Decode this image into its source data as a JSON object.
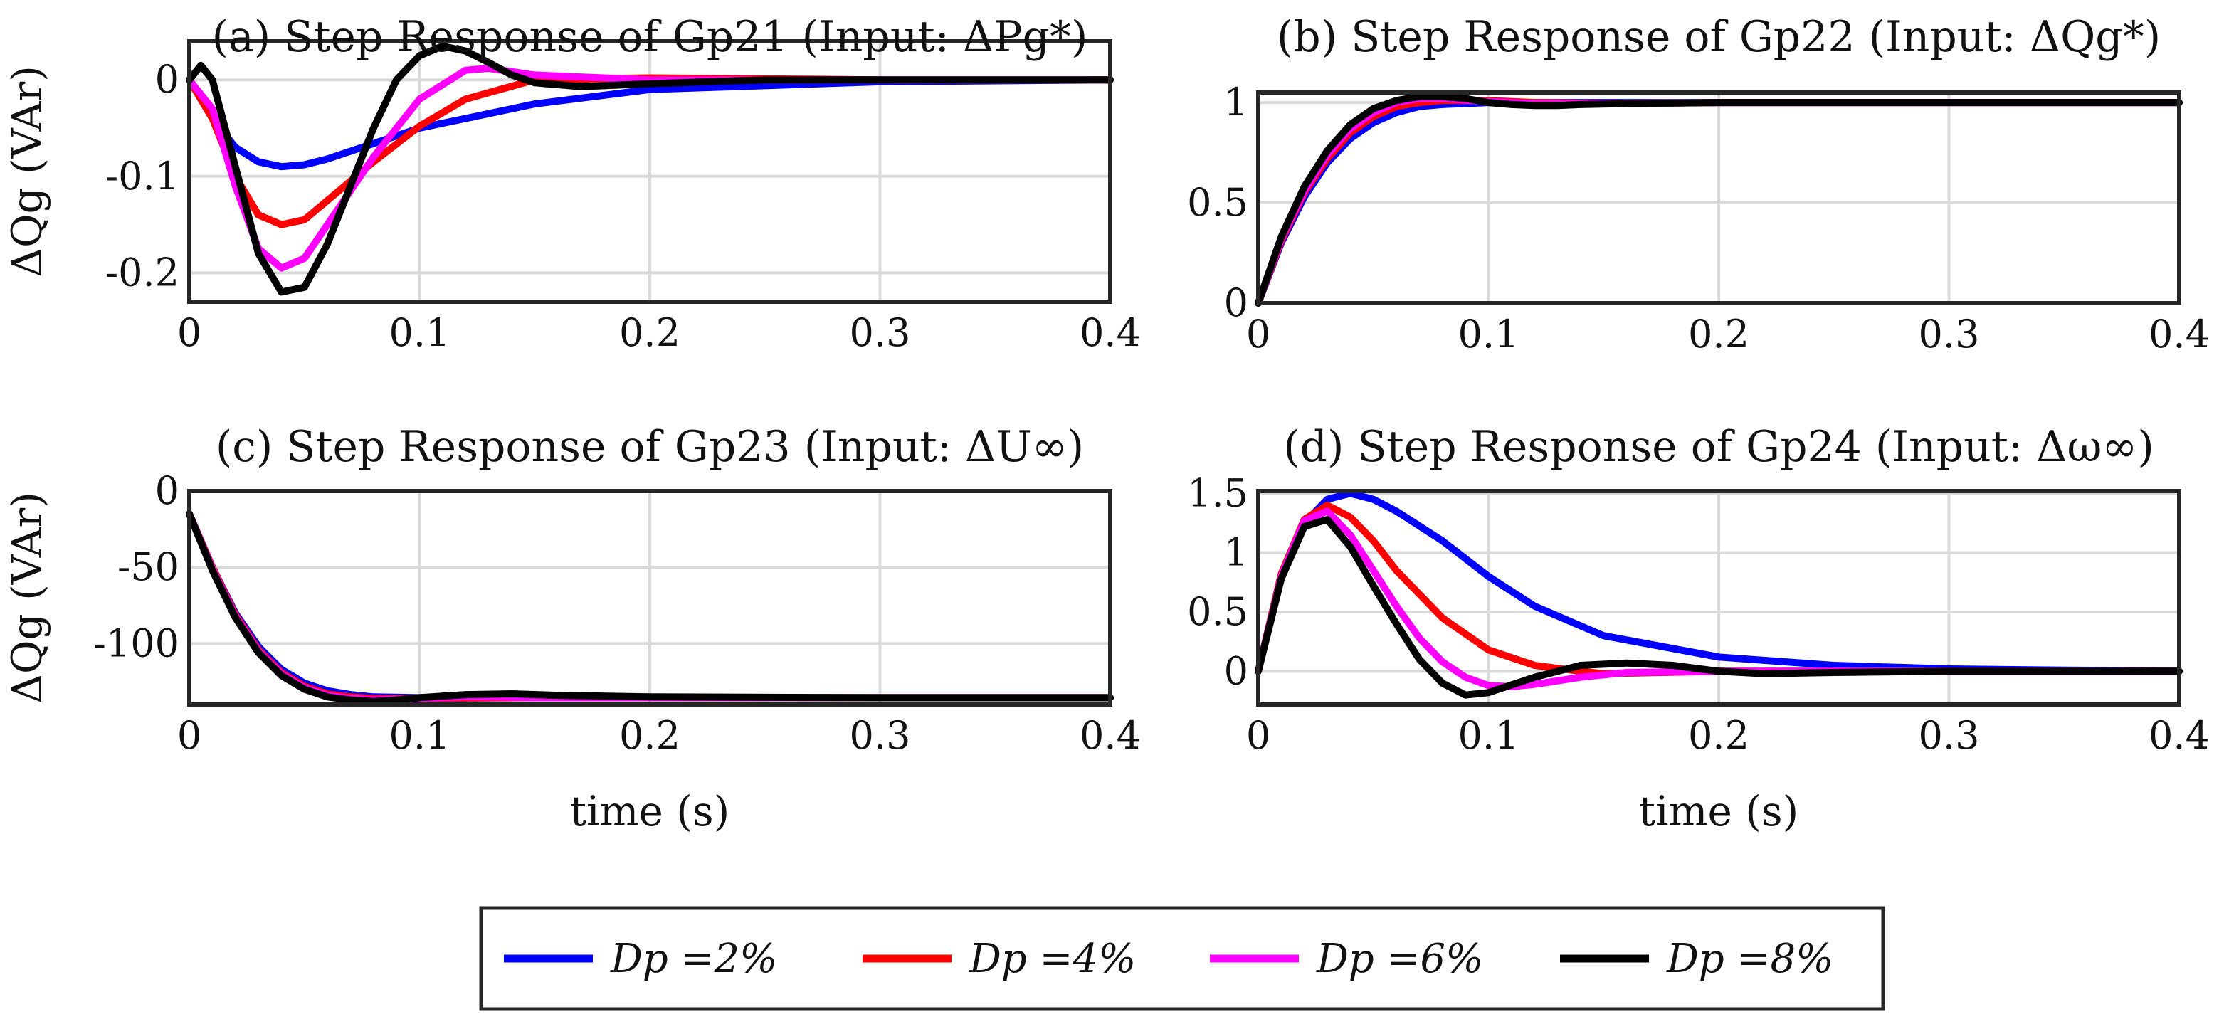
{
  "figure": {
    "series_colors": {
      "2": "#0000ff",
      "4": "#ff0000",
      "6": "#ff00ff",
      "8": "#000000"
    }
  },
  "legend": {
    "entries": [
      {
        "label": "Dp =2%",
        "color": "#0000ff"
      },
      {
        "label": "Dp =4%",
        "color": "#ff0000"
      },
      {
        "label": "Dp =6%",
        "color": "#ff00ff"
      },
      {
        "label": "Dp =8%",
        "color": "#000000"
      }
    ]
  },
  "chart_data": [
    {
      "type": "line",
      "panel": "(a)",
      "title": "(a) Step Response of Gp21 (Input: ΔPg*)",
      "xlabel": "",
      "ylabel": "ΔQg (VAr)",
      "xlim": [
        0,
        0.4
      ],
      "ylim": [
        -0.23,
        0.04
      ],
      "xticks": [
        "0",
        "0.1",
        "0.2",
        "0.3",
        "0.4"
      ],
      "yticks": [
        "0",
        "-0.1",
        "-0.2"
      ],
      "ytick_values": [
        0,
        -0.1,
        -0.2
      ],
      "grid": true,
      "series": [
        {
          "name": "Dp =2%",
          "x": [
            0,
            0.01,
            0.02,
            0.03,
            0.04,
            0.05,
            0.06,
            0.08,
            0.1,
            0.15,
            0.2,
            0.3,
            0.4
          ],
          "y": [
            0,
            -0.04,
            -0.07,
            -0.085,
            -0.09,
            -0.088,
            -0.082,
            -0.066,
            -0.05,
            -0.025,
            -0.01,
            -0.002,
            0
          ]
        },
        {
          "name": "Dp =4%",
          "x": [
            0,
            0.01,
            0.02,
            0.03,
            0.04,
            0.05,
            0.06,
            0.08,
            0.1,
            0.12,
            0.15,
            0.2,
            0.3,
            0.4
          ],
          "y": [
            0,
            -0.04,
            -0.1,
            -0.14,
            -0.15,
            -0.145,
            -0.125,
            -0.085,
            -0.048,
            -0.02,
            0,
            0.002,
            0,
            0
          ]
        },
        {
          "name": "Dp =6%",
          "x": [
            0,
            0.01,
            0.02,
            0.03,
            0.04,
            0.05,
            0.06,
            0.08,
            0.1,
            0.12,
            0.13,
            0.15,
            0.2,
            0.3,
            0.4
          ],
          "y": [
            0,
            -0.03,
            -0.11,
            -0.175,
            -0.195,
            -0.185,
            -0.15,
            -0.08,
            -0.02,
            0.01,
            0.012,
            0.005,
            0,
            0,
            0
          ]
        },
        {
          "name": "Dp =8%",
          "x": [
            0,
            0.005,
            0.01,
            0.02,
            0.03,
            0.04,
            0.05,
            0.06,
            0.07,
            0.08,
            0.09,
            0.1,
            0.11,
            0.12,
            0.13,
            0.14,
            0.15,
            0.17,
            0.2,
            0.25,
            0.3,
            0.4
          ],
          "y": [
            0,
            0.015,
            0,
            -0.09,
            -0.18,
            -0.22,
            -0.215,
            -0.17,
            -0.11,
            -0.05,
            0,
            0.025,
            0.035,
            0.03,
            0.018,
            0.005,
            -0.003,
            -0.007,
            -0.004,
            0,
            0,
            0
          ]
        }
      ]
    },
    {
      "type": "line",
      "panel": "(b)",
      "title": "(b) Step Response of Gp22 (Input: ΔQg*)",
      "xlabel": "",
      "ylabel": "",
      "xlim": [
        0,
        0.4
      ],
      "ylim": [
        0,
        1.05
      ],
      "xticks": [
        "0",
        "0.1",
        "0.2",
        "0.3",
        "0.4"
      ],
      "yticks": [
        "0",
        "0.5",
        "1"
      ],
      "ytick_values": [
        0,
        0.5,
        1
      ],
      "grid": true,
      "series": [
        {
          "name": "Dp =2%",
          "x": [
            0,
            0.01,
            0.02,
            0.03,
            0.04,
            0.05,
            0.06,
            0.07,
            0.08,
            0.1,
            0.15,
            0.2,
            0.3,
            0.4
          ],
          "y": [
            0,
            0.3,
            0.53,
            0.7,
            0.82,
            0.9,
            0.95,
            0.98,
            0.99,
            1.0,
            1.0,
            1.0,
            1.0,
            1.0
          ]
        },
        {
          "name": "Dp =4%",
          "x": [
            0,
            0.01,
            0.02,
            0.03,
            0.04,
            0.05,
            0.06,
            0.07,
            0.08,
            0.1,
            0.12,
            0.15,
            0.2,
            0.3,
            0.4
          ],
          "y": [
            0,
            0.31,
            0.55,
            0.72,
            0.85,
            0.93,
            0.98,
            1.0,
            1.01,
            1.01,
            1.0,
            0.995,
            1.0,
            1.0,
            1.0
          ]
        },
        {
          "name": "Dp =6%",
          "x": [
            0,
            0.01,
            0.02,
            0.03,
            0.04,
            0.05,
            0.06,
            0.07,
            0.08,
            0.1,
            0.12,
            0.15,
            0.2,
            0.3,
            0.4
          ],
          "y": [
            0,
            0.32,
            0.56,
            0.74,
            0.87,
            0.95,
            1.0,
            1.02,
            1.02,
            1.005,
            0.995,
            0.995,
            1.0,
            1.0,
            1.0
          ]
        },
        {
          "name": "Dp =8%",
          "x": [
            0,
            0.01,
            0.02,
            0.03,
            0.04,
            0.05,
            0.06,
            0.07,
            0.08,
            0.09,
            0.1,
            0.11,
            0.12,
            0.13,
            0.14,
            0.16,
            0.2,
            0.3,
            0.4
          ],
          "y": [
            0,
            0.33,
            0.58,
            0.76,
            0.89,
            0.97,
            1.01,
            1.03,
            1.03,
            1.02,
            1.0,
            0.99,
            0.985,
            0.985,
            0.99,
            0.995,
            1.0,
            1.0,
            1.0
          ]
        }
      ]
    },
    {
      "type": "line",
      "panel": "(c)",
      "title": "(c) Step Response of Gp23 (Input: ΔU∞)",
      "xlabel": "time (s)",
      "ylabel": "ΔQg (VAr)",
      "xlim": [
        0,
        0.4
      ],
      "ylim": [
        -140,
        0
      ],
      "xticks": [
        "0",
        "0.1",
        "0.2",
        "0.3",
        "0.4"
      ],
      "yticks": [
        "0",
        "-50",
        "-100"
      ],
      "ytick_values": [
        0,
        -50,
        -100
      ],
      "grid": true,
      "series": [
        {
          "name": "Dp =2%",
          "x": [
            0,
            0.01,
            0.02,
            0.03,
            0.04,
            0.05,
            0.06,
            0.07,
            0.08,
            0.1,
            0.15,
            0.2,
            0.3,
            0.4
          ],
          "y": [
            -15,
            -50,
            -80,
            -102,
            -117,
            -126,
            -131,
            -133.5,
            -135,
            -135.5,
            -135.5,
            -135.5,
            -135.5,
            -135.5
          ]
        },
        {
          "name": "Dp =4%",
          "x": [
            0,
            0.01,
            0.02,
            0.03,
            0.04,
            0.05,
            0.06,
            0.07,
            0.08,
            0.1,
            0.15,
            0.2,
            0.3,
            0.4
          ],
          "y": [
            -15,
            -50,
            -81,
            -104,
            -119,
            -128,
            -133,
            -135,
            -136,
            -136,
            -135.5,
            -135.5,
            -135.5,
            -135.5
          ]
        },
        {
          "name": "Dp =6%",
          "x": [
            0,
            0.01,
            0.02,
            0.03,
            0.04,
            0.05,
            0.06,
            0.07,
            0.08,
            0.1,
            0.12,
            0.15,
            0.2,
            0.3,
            0.4
          ],
          "y": [
            -15,
            -51,
            -82,
            -105,
            -120,
            -129,
            -134,
            -136,
            -137,
            -136,
            -135,
            -135.5,
            -135.5,
            -135.5,
            -135.5
          ]
        },
        {
          "name": "Dp =8%",
          "x": [
            0,
            0.01,
            0.02,
            0.03,
            0.04,
            0.05,
            0.06,
            0.07,
            0.08,
            0.09,
            0.1,
            0.12,
            0.14,
            0.16,
            0.2,
            0.3,
            0.4
          ],
          "y": [
            -15,
            -52,
            -83,
            -106,
            -121,
            -130,
            -135,
            -137,
            -138,
            -137,
            -135.5,
            -133.5,
            -133,
            -134,
            -135,
            -135.5,
            -135.5
          ]
        }
      ]
    },
    {
      "type": "line",
      "panel": "(d)",
      "title": "(d) Step Response of Gp24 (Input: Δω∞)",
      "xlabel": "time (s)",
      "ylabel": "",
      "xlim": [
        0,
        0.4
      ],
      "ylim": [
        -0.28,
        1.52
      ],
      "xticks": [
        "0",
        "0.1",
        "0.2",
        "0.3",
        "0.4"
      ],
      "yticks": [
        "0",
        "0.5",
        "1",
        "1.5"
      ],
      "ytick_values": [
        0,
        0.5,
        1,
        1.5
      ],
      "grid": true,
      "series": [
        {
          "name": "Dp =2%",
          "x": [
            0,
            0.01,
            0.02,
            0.03,
            0.04,
            0.05,
            0.06,
            0.08,
            0.1,
            0.12,
            0.15,
            0.2,
            0.25,
            0.3,
            0.35,
            0.4
          ],
          "y": [
            0,
            0.8,
            1.25,
            1.45,
            1.5,
            1.45,
            1.35,
            1.1,
            0.8,
            0.55,
            0.3,
            0.12,
            0.05,
            0.02,
            0.01,
            0
          ]
        },
        {
          "name": "Dp =4%",
          "x": [
            0,
            0.01,
            0.02,
            0.03,
            0.04,
            0.05,
            0.06,
            0.08,
            0.1,
            0.12,
            0.14,
            0.15,
            0.2,
            0.3,
            0.4
          ],
          "y": [
            0,
            0.82,
            1.28,
            1.4,
            1.3,
            1.1,
            0.85,
            0.45,
            0.18,
            0.05,
            0,
            -0.02,
            0,
            0,
            0
          ]
        },
        {
          "name": "Dp =6%",
          "x": [
            0,
            0.01,
            0.02,
            0.03,
            0.04,
            0.05,
            0.06,
            0.07,
            0.08,
            0.09,
            0.1,
            0.11,
            0.12,
            0.14,
            0.16,
            0.2,
            0.3,
            0.4
          ],
          "y": [
            0,
            0.8,
            1.27,
            1.35,
            1.15,
            0.85,
            0.55,
            0.28,
            0.08,
            -0.05,
            -0.12,
            -0.13,
            -0.11,
            -0.05,
            -0.01,
            0,
            0,
            0
          ]
        },
        {
          "name": "Dp =8%",
          "x": [
            0,
            0.01,
            0.02,
            0.03,
            0.04,
            0.05,
            0.06,
            0.07,
            0.08,
            0.09,
            0.1,
            0.12,
            0.14,
            0.16,
            0.18,
            0.2,
            0.22,
            0.25,
            0.3,
            0.4
          ],
          "y": [
            0,
            0.78,
            1.22,
            1.28,
            1.05,
            0.72,
            0.4,
            0.1,
            -0.1,
            -0.2,
            -0.18,
            -0.05,
            0.05,
            0.07,
            0.05,
            0.0,
            -0.02,
            -0.01,
            0,
            0
          ]
        }
      ]
    }
  ]
}
